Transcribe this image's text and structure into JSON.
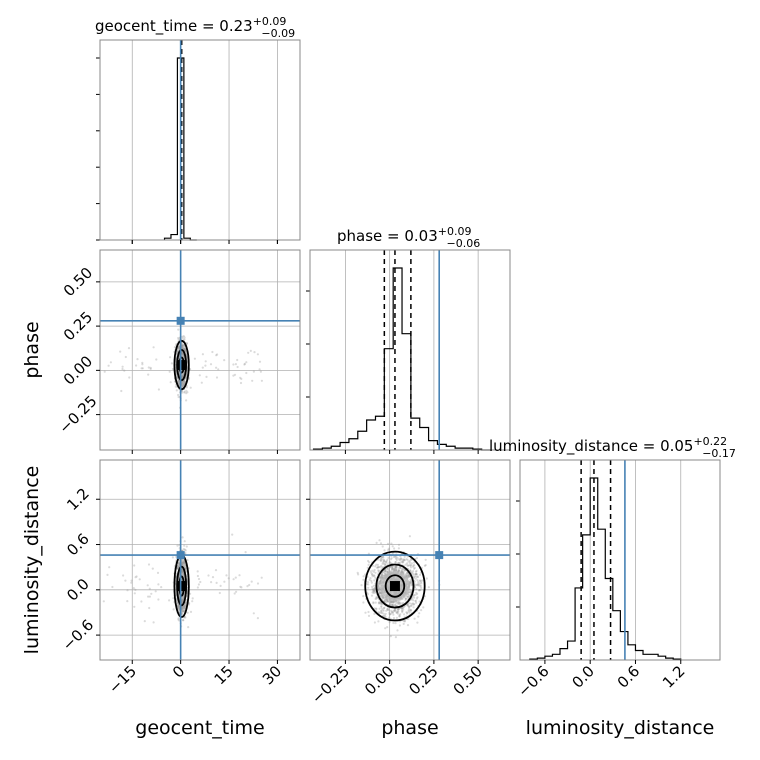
{
  "chart_data": {
    "type": "corner",
    "parameters": [
      "geocent_time",
      "phase",
      "luminosity_distance"
    ],
    "titles": [
      {
        "param": "geocent_time",
        "median": "0.23",
        "plus": "+0.09",
        "minus": "−0.09"
      },
      {
        "param": "phase",
        "median": "0.03",
        "plus": "+0.09",
        "minus": "−0.06"
      },
      {
        "param": "luminosity_distance",
        "median": "0.05",
        "plus": "+0.22",
        "minus": "−0.17"
      }
    ],
    "ranges": {
      "geocent_time": [
        -25,
        37
      ],
      "phase": [
        -0.45,
        0.68
      ],
      "luminosity_distance": [
        -0.93,
        1.72
      ]
    },
    "ticks": {
      "geocent_time": [
        {
          "value": -15,
          "label": "−15"
        },
        {
          "value": 0,
          "label": "0"
        },
        {
          "value": 15,
          "label": "15"
        },
        {
          "value": 30,
          "label": "30"
        }
      ],
      "phase": [
        {
          "value": -0.25,
          "label": "−0.25"
        },
        {
          "value": 0.0,
          "label": "0.00"
        },
        {
          "value": 0.25,
          "label": "0.25"
        },
        {
          "value": 0.5,
          "label": "0.50"
        }
      ],
      "luminosity_distance": [
        {
          "value": -0.6,
          "label": "−0.6"
        },
        {
          "value": 0.0,
          "label": "0.0"
        },
        {
          "value": 0.6,
          "label": "0.6"
        },
        {
          "value": 1.2,
          "label": "1.2"
        }
      ]
    },
    "injection": {
      "geocent_time": 0.0,
      "phase": 0.28,
      "luminosity_distance": 0.46
    },
    "quantiles": {
      "geocent_time": [
        0.14,
        0.23,
        0.32
      ],
      "phase": [
        -0.03,
        0.03,
        0.12
      ],
      "luminosity_distance": [
        -0.12,
        0.05,
        0.27
      ]
    },
    "histograms": {
      "geocent_time": {
        "edges": [
          -5,
          -3,
          -1,
          1,
          3,
          5
        ],
        "counts": [
          0.01,
          0.03,
          1.0,
          0.01,
          0.0
        ]
      },
      "phase": {
        "edges": [
          -0.43,
          -0.38,
          -0.33,
          -0.28,
          -0.23,
          -0.18,
          -0.13,
          -0.08,
          -0.03,
          0.02,
          0.07,
          0.12,
          0.17,
          0.22,
          0.27,
          0.32,
          0.37,
          0.42,
          0.47,
          0.52,
          0.57
        ],
        "counts": [
          0.005,
          0.01,
          0.02,
          0.04,
          0.06,
          0.1,
          0.16,
          0.18,
          0.54,
          0.97,
          0.62,
          0.17,
          0.12,
          0.05,
          0.03,
          0.02,
          0.01,
          0.01,
          0.005,
          0.0
        ]
      },
      "luminosity_distance": {
        "edges": [
          -0.8,
          -0.7,
          -0.6,
          -0.5,
          -0.4,
          -0.3,
          -0.2,
          -0.1,
          0.0,
          0.1,
          0.2,
          0.3,
          0.4,
          0.5,
          0.6,
          0.7,
          0.8,
          0.9,
          1.0,
          1.1,
          1.2
        ],
        "counts": [
          0.005,
          0.01,
          0.02,
          0.03,
          0.06,
          0.1,
          0.38,
          0.66,
          0.96,
          0.69,
          0.43,
          0.26,
          0.15,
          0.08,
          0.05,
          0.03,
          0.03,
          0.02,
          0.01,
          0.005
        ]
      }
    },
    "pairs": [
      {
        "x": "geocent_time",
        "y": "phase",
        "cx": 0.3,
        "cy": 0.03,
        "sx": 0.8,
        "sy": 0.06
      },
      {
        "x": "geocent_time",
        "y": "luminosity_distance",
        "cx": 0.3,
        "cy": 0.05,
        "sx": 0.8,
        "sy": 0.18
      },
      {
        "x": "phase",
        "y": "luminosity_distance",
        "cx": 0.03,
        "cy": 0.05,
        "sx": 0.07,
        "sy": 0.2
      }
    ],
    "grid": true,
    "injection_color": "#4682b4"
  }
}
